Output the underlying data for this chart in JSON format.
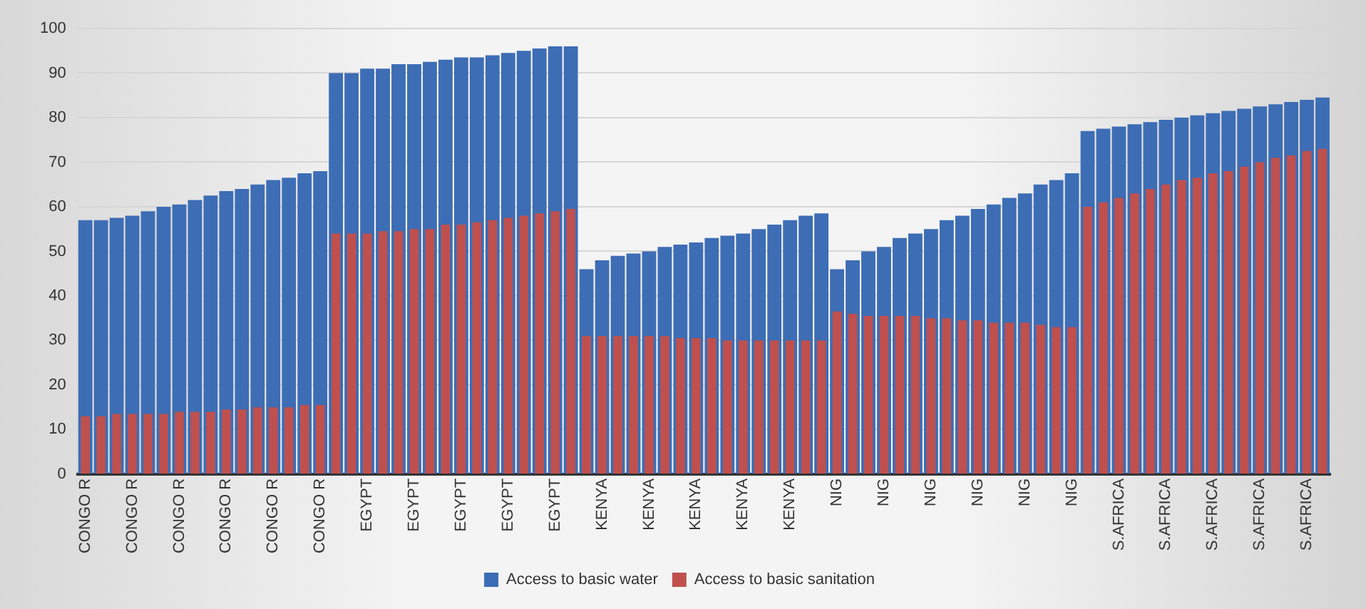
{
  "chart_data": {
    "type": "bar",
    "categories": [
      "CONGO R",
      null,
      null,
      "CONGO R",
      null,
      null,
      "CONGO R",
      null,
      null,
      "CONGO R",
      null,
      null,
      "CONGO R",
      null,
      null,
      "CONGO R",
      null,
      null,
      "EGYPT",
      null,
      null,
      "EGYPT",
      null,
      null,
      "EGYPT",
      null,
      null,
      "EGYPT",
      null,
      null,
      "EGYPT",
      null,
      null,
      "KENYA",
      null,
      null,
      "KENYA",
      null,
      null,
      "KENYA",
      null,
      null,
      "KENYA",
      null,
      null,
      "KENYA",
      null,
      null,
      "NIG",
      null,
      null,
      "NIG",
      null,
      null,
      "NIG",
      null,
      null,
      "NIG",
      null,
      null,
      "NIG",
      null,
      null,
      "NIG",
      null,
      null,
      "S.AFRICA",
      null,
      null,
      "S.AFRICA",
      null,
      null,
      "S.AFRICA",
      null,
      null,
      "S.AFRICA",
      null,
      null,
      "S.AFRICA",
      null
    ],
    "series": [
      {
        "name": "Access to basic water",
        "color": "#3d6db5",
        "values": [
          57,
          57,
          57.5,
          58,
          59,
          60,
          60.5,
          61.5,
          62.5,
          63.5,
          64,
          65,
          66,
          66.5,
          67.5,
          68,
          90,
          90,
          91,
          91,
          92,
          92,
          92.5,
          93,
          93.5,
          93.5,
          94,
          94.5,
          95,
          95.5,
          96,
          96,
          46,
          48,
          49,
          49.5,
          50,
          51,
          51.5,
          52,
          53,
          53.5,
          54,
          55,
          56,
          57,
          58,
          58.5,
          46,
          48,
          50,
          51,
          53,
          54,
          55,
          57,
          58,
          59.5,
          60.5,
          62,
          63,
          65,
          66,
          67.5,
          77,
          77.5,
          78,
          78.5,
          79,
          79.5,
          80,
          80.5,
          81,
          81.5,
          82,
          82.5,
          83,
          83.5,
          84,
          84.5
        ]
      },
      {
        "name": "Access to basic sanitation",
        "color": "#c0504d",
        "values": [
          13,
          13,
          13.5,
          13.5,
          13.5,
          13.5,
          14,
          14,
          14,
          14.5,
          14.5,
          15,
          15,
          15,
          15.5,
          15.5,
          54,
          54,
          54,
          54.5,
          54.5,
          55,
          55,
          56,
          56,
          56.5,
          57,
          57.5,
          58,
          58.5,
          59,
          59.5,
          31,
          31,
          31,
          31,
          31,
          31,
          30.5,
          30.5,
          30.5,
          30,
          30,
          30,
          30,
          30,
          30,
          30,
          36.5,
          36,
          35.5,
          35.5,
          35.5,
          35.5,
          35,
          35,
          34.5,
          34.5,
          34,
          34,
          34,
          33.5,
          33,
          33,
          60,
          61,
          62,
          63,
          64,
          65,
          66,
          66.5,
          67.5,
          68,
          69,
          70,
          71,
          71.5,
          72.5,
          73
        ]
      }
    ],
    "ylim": [
      0,
      100
    ],
    "yticks": [
      0,
      10,
      20,
      30,
      40,
      50,
      60,
      70,
      80,
      90,
      100
    ],
    "grid": "y",
    "legend": "bottom"
  }
}
